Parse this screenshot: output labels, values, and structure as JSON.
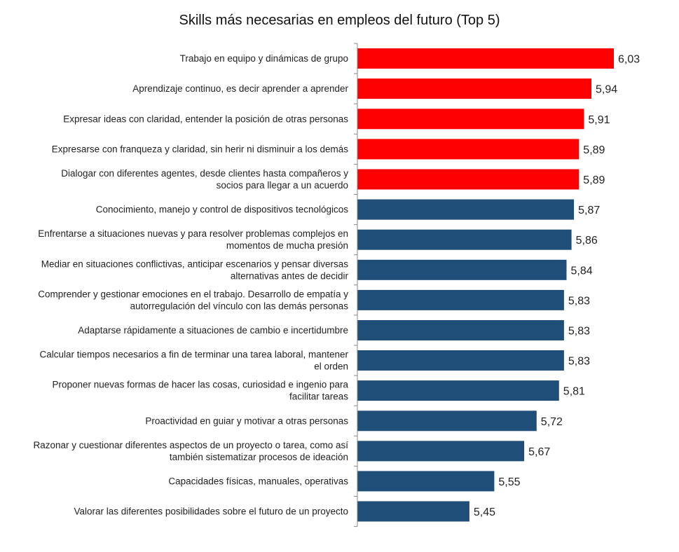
{
  "chart_data": {
    "type": "bar",
    "orientation": "horizontal",
    "title": "Skills más necesarias en empleos del futuro (Top 5)",
    "highlight_color": "#ff0000",
    "base_color": "#1f4e79",
    "highlight_count": 5,
    "categories": [
      [
        "Trabajo en equipo y dinámicas de grupo"
      ],
      [
        "Aprendizaje continuo, es decir aprender a aprender"
      ],
      [
        "Expresar ideas con claridad, entender la posición de otras personas"
      ],
      [
        "Expresarse con franqueza y claridad, sin herir ni disminuir a los demás"
      ],
      [
        "Dialogar con diferentes agentes, desde clientes hasta compañeros y",
        "socios para llegar a un acuerdo"
      ],
      [
        "Conocimiento, manejo y control de dispositivos tecnológicos"
      ],
      [
        "Enfrentarse a situaciones nuevas y para resolver problemas complejos en",
        "momentos de mucha presión"
      ],
      [
        "Mediar en situaciones conflictivas, anticipar escenarios y pensar diversas",
        "alternativas antes de decidir"
      ],
      [
        "Comprender y gestionar emociones en el trabajo. Desarrollo de empatía y",
        "autorregulación del vínculo con las demás personas"
      ],
      [
        "Adaptarse rápidamente a situaciones de cambio e incertidumbre"
      ],
      [
        "Calcular tiempos necesarios a fin de terminar una tarea laboral, mantener",
        "el orden"
      ],
      [
        "Proponer nuevas formas de hacer las cosas, curiosidad e ingenio para",
        "facilitar tareas"
      ],
      [
        "Proactividad en guiar y motivar a otras personas"
      ],
      [
        "Razonar y cuestionar diferentes aspectos de un proyecto o tarea, como así",
        "también sistematizar procesos de ideación"
      ],
      [
        "Capacidades físicas, manuales, operativas"
      ],
      [
        "Valorar las diferentes posibilidades sobre el futuro de un proyecto"
      ]
    ],
    "values": [
      6.03,
      5.94,
      5.91,
      5.89,
      5.89,
      5.87,
      5.86,
      5.84,
      5.83,
      5.83,
      5.83,
      5.81,
      5.72,
      5.67,
      5.55,
      5.45
    ],
    "value_labels": [
      "6,03",
      "5,94",
      "5,91",
      "5,89",
      "5,89",
      "5,87",
      "5,86",
      "5,84",
      "5,83",
      "5,83",
      "5,83",
      "5,81",
      "5,72",
      "5,67",
      "5,55",
      "5,45"
    ],
    "xlim": [
      5.0,
      6.03
    ],
    "grid": false,
    "legend": "none"
  }
}
